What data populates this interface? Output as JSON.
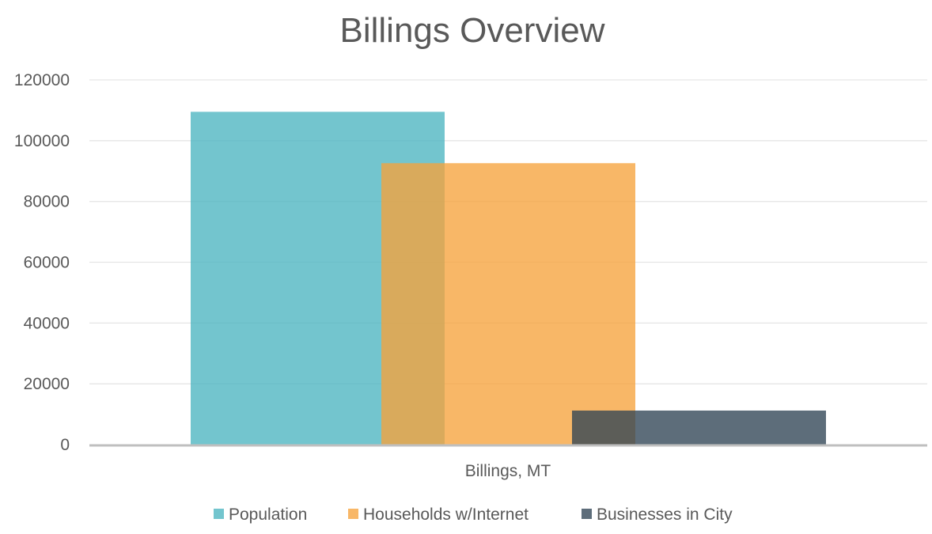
{
  "chart_data": {
    "type": "bar",
    "title": "Billings Overview",
    "categories": [
      "Billings, MT"
    ],
    "series": [
      {
        "name": "Population",
        "values": [
          109500
        ],
        "color": "#4BB5C0"
      },
      {
        "name": "Households w/Internet",
        "values": [
          92600
        ],
        "color": "#F6A33C"
      },
      {
        "name": "Businesses in City",
        "values": [
          11200
        ],
        "color": "#2F4454"
      }
    ],
    "ylim": [
      0,
      120000
    ],
    "yticks": [
      "0",
      "20000",
      "40000",
      "60000",
      "80000",
      "100000",
      "120000"
    ],
    "grid": true,
    "legend_position": "bottom",
    "bar_opacity": 0.78,
    "gridline_color": "#E6E6E6",
    "axis_color": "#BFBFBF"
  }
}
